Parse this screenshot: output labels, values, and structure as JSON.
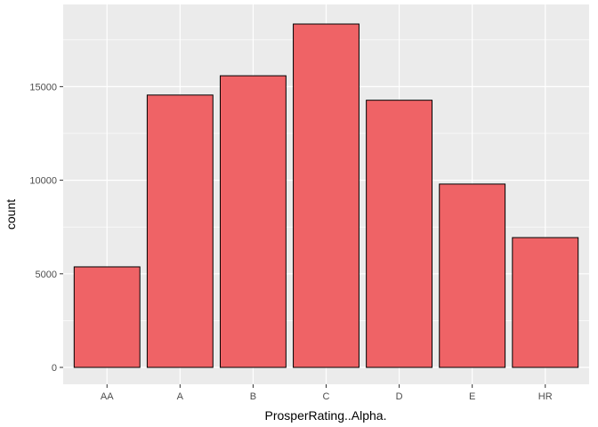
{
  "chart_data": {
    "type": "bar",
    "title": "",
    "xlabel": "ProsperRating..Alpha.",
    "ylabel": "count",
    "categories": [
      "AA",
      "A",
      "B",
      "C",
      "D",
      "E",
      "HR"
    ],
    "values": [
      5372,
      14551,
      15581,
      18345,
      14274,
      9795,
      6935
    ],
    "ylim": [
      0,
      18345
    ],
    "yticks": [
      0,
      5000,
      10000,
      15000
    ],
    "ytick_labels": [
      "0",
      "5000",
      "10000",
      "15000"
    ],
    "grid": true,
    "bar_fill": "#EF6366",
    "bar_stroke": "#000000",
    "panel_background": "#EBEBEB",
    "gridline_color": "#FFFFFF"
  }
}
